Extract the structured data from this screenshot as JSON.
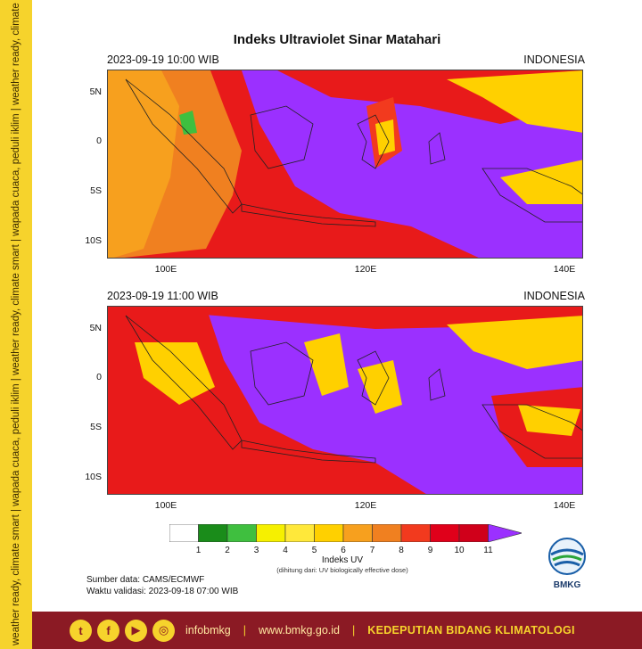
{
  "sidebar_text": "weather ready, climate smart | wapada cuaca, peduli iklim | weather ready, climate smart | wapada cuaca, peduli iklim | weather ready, climate smart | wapada cuaca, peduli iklim",
  "title": "Indeks Ultraviolet Sinar Matahari",
  "panels": [
    {
      "timestamp": "2023-09-19  10:00 WIB",
      "region": "INDONESIA"
    },
    {
      "timestamp": "2023-09-19  11:00 WIB",
      "region": "INDONESIA"
    }
  ],
  "lat_labels": [
    "5N",
    "0",
    "5S",
    "10S"
  ],
  "lon_labels": [
    "100E",
    "120E",
    "140E"
  ],
  "colorbar": {
    "title": "Indeks UV",
    "subtitle": "(dihitung dari: UV biologically effective dose)",
    "ticks": [
      "1",
      "2",
      "3",
      "4",
      "5",
      "6",
      "7",
      "8",
      "9",
      "10",
      "11"
    ],
    "colors": [
      "#ffffff",
      "#1a8c1a",
      "#3fbf3f",
      "#f6f000",
      "#ffe83a",
      "#ffd000",
      "#f7a01e",
      "#f08020",
      "#f23a1e",
      "#e0001a",
      "#d0001a",
      "#9b30ff"
    ]
  },
  "source_line": "Sumber data: CAMS/ECMWF",
  "validity_line": "Waktu validasi: 2023-09-18 07:00 WIB",
  "logo_text": "BMKG",
  "footer": {
    "handle": "infobmkg",
    "separator": "|",
    "website": "www.bmkg.go.id",
    "department": "KEDEPUTIAN BIDANG KLIMATOLOGI",
    "social_icons": [
      "twitter-icon",
      "facebook-icon",
      "youtube-icon",
      "instagram-icon"
    ]
  }
}
